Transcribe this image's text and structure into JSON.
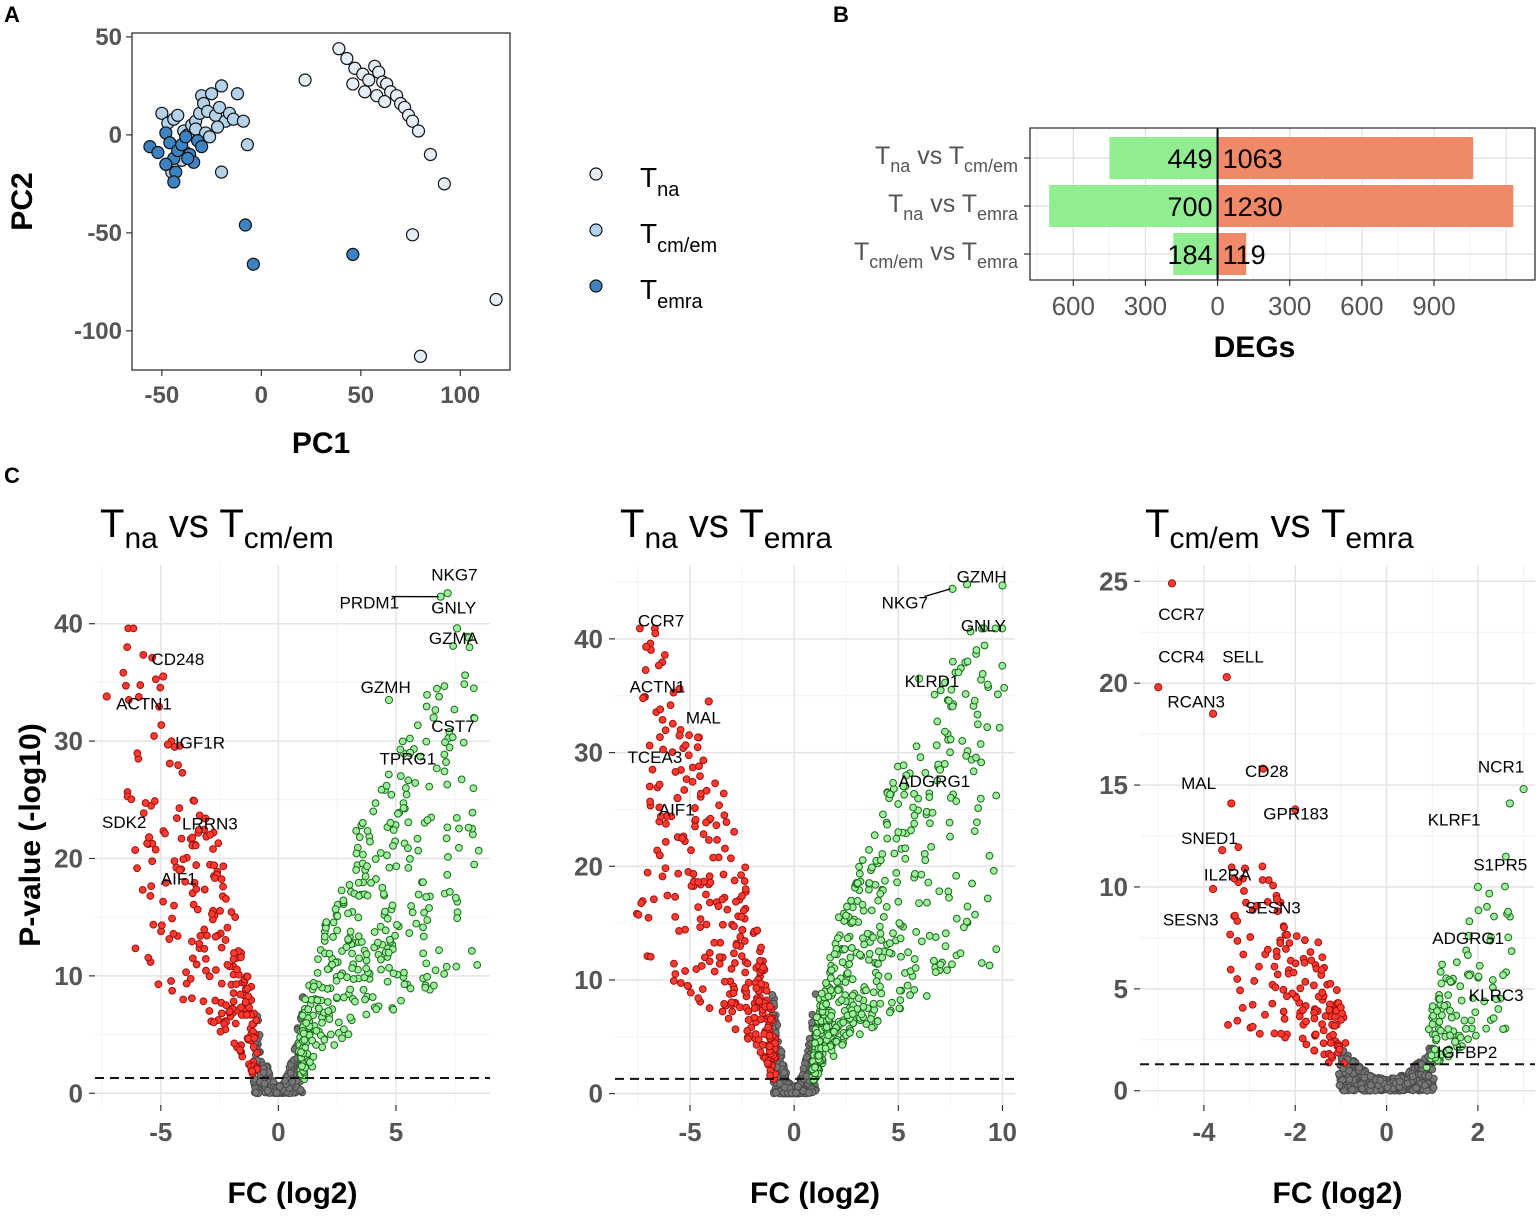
{
  "panels": {
    "a_label": "A",
    "b_label": "B",
    "c_label": "C"
  },
  "chart_data": [
    {
      "id": "pca",
      "type": "scatter",
      "xlabel": "PC1",
      "ylabel": "PC2",
      "xlim": [
        -65,
        125
      ],
      "ylim": [
        -120,
        52
      ],
      "xticks": [
        -50,
        0,
        50,
        100
      ],
      "yticks": [
        50,
        0,
        -50,
        -100
      ],
      "legend": {
        "placement": "right",
        "entries": [
          {
            "base": "T",
            "sub": "na",
            "color": "#e4eef8"
          },
          {
            "base": "T",
            "sub": "cm/em",
            "color": "#b4d3ea"
          },
          {
            "base": "T",
            "sub": "emra",
            "color": "#3d83c1"
          }
        ]
      },
      "series": [
        {
          "name": "Tna",
          "color": "#e4eef8",
          "points": [
            [
              39,
              44
            ],
            [
              43,
              39
            ],
            [
              47,
              34
            ],
            [
              51,
              31
            ],
            [
              54,
              28
            ],
            [
              57,
              35
            ],
            [
              59,
              32
            ],
            [
              61,
              27
            ],
            [
              63,
              26
            ],
            [
              65,
              22
            ],
            [
              68,
              20
            ],
            [
              70,
              16
            ],
            [
              72,
              14
            ],
            [
              74,
              10
            ],
            [
              76,
              7
            ],
            [
              79,
              2
            ],
            [
              58,
              20
            ],
            [
              62,
              17
            ],
            [
              52,
              22
            ],
            [
              46,
              26
            ],
            [
              22,
              28
            ],
            [
              85,
              -10
            ],
            [
              92,
              -25
            ],
            [
              76,
              -51
            ],
            [
              118,
              -84
            ],
            [
              80,
              -113
            ]
          ]
        },
        {
          "name": "Tcm/em",
          "color": "#b4d3ea",
          "points": [
            [
              -50,
              11
            ],
            [
              -47,
              6
            ],
            [
              -44,
              8
            ],
            [
              -42,
              10
            ],
            [
              -39,
              2
            ],
            [
              -37,
              0
            ],
            [
              -35,
              5
            ],
            [
              -33,
              7
            ],
            [
              -31,
              11
            ],
            [
              -30,
              20
            ],
            [
              -29,
              16
            ],
            [
              -27,
              12
            ],
            [
              -25,
              21
            ],
            [
              -23,
              10
            ],
            [
              -21,
              14
            ],
            [
              -20,
              25
            ],
            [
              -18,
              7
            ],
            [
              -16,
              11
            ],
            [
              -14,
              8
            ],
            [
              -12,
              21
            ],
            [
              -9,
              7
            ],
            [
              -7,
              -5
            ],
            [
              -20,
              -19
            ],
            [
              -38,
              -9
            ],
            [
              -33,
              3
            ],
            [
              -28,
              1
            ],
            [
              -26,
              -1
            ],
            [
              -22,
              4
            ],
            [
              -40,
              -13
            ],
            [
              -45,
              -19
            ]
          ]
        },
        {
          "name": "Temra",
          "color": "#3d83c1",
          "points": [
            [
              -56,
              -6
            ],
            [
              -52,
              -9
            ],
            [
              -48,
              1
            ],
            [
              -46,
              -4
            ],
            [
              -44,
              -12
            ],
            [
              -43,
              -19
            ],
            [
              -42,
              -8
            ],
            [
              -40,
              -5
            ],
            [
              -38,
              -1
            ],
            [
              -36,
              -10
            ],
            [
              -34,
              -14
            ],
            [
              -32,
              -3
            ],
            [
              -30,
              -6
            ],
            [
              -44,
              -24
            ],
            [
              -48,
              -15
            ],
            [
              -37,
              -12
            ],
            [
              -8,
              -46
            ],
            [
              -4,
              -66
            ],
            [
              46,
              -61
            ]
          ]
        }
      ]
    },
    {
      "id": "degs",
      "type": "bar",
      "orientation": "horizontal",
      "xlabel": "DEGs",
      "xlim": [
        -780,
        1320
      ],
      "xticks": [
        -600,
        -300,
        0,
        300,
        600,
        900
      ],
      "xtick_labels": [
        "600",
        "300",
        "0",
        "300",
        "600",
        "900"
      ],
      "categories": [
        {
          "base1": "T",
          "sub1": "na",
          "mid": " vs ",
          "base2": "T",
          "sub2": "cm/em"
        },
        {
          "base1": "T",
          "sub1": "na",
          "mid": " vs ",
          "base2": "T",
          "sub2": "emra"
        },
        {
          "base1": "T",
          "sub1": "cm/em",
          "mid": " vs ",
          "base2": "T",
          "sub2": "emra"
        }
      ],
      "series": [
        {
          "name": "down",
          "color": "#90ee90",
          "values": [
            449,
            700,
            184
          ]
        },
        {
          "name": "up",
          "color": "#f08968",
          "values": [
            1063,
            1230,
            119
          ]
        }
      ]
    },
    {
      "id": "volcano1",
      "type": "scatter",
      "title": {
        "b1": "T",
        "s1": "na",
        "mid": " vs ",
        "b2": "T",
        "s2": "cm/em"
      },
      "xlabel": "FC (log2)",
      "ylabel": "P-value (-log10)",
      "xlim": [
        -7.8,
        9.0
      ],
      "ylim": [
        -1.0,
        45
      ],
      "xticks": [
        -5,
        0,
        5
      ],
      "yticks": [
        0,
        10,
        20,
        30,
        40
      ],
      "threshold": 1.3,
      "fc_cut": 1.0,
      "seed": 11,
      "spread": {
        "left": 5.5,
        "right": 7.5,
        "amp": 38,
        "n_ns": 260,
        "n_down": 230,
        "n_up": 380
      },
      "labeled_points": [
        {
          "label": "NKG7",
          "x": 7.2,
          "y": 42.6,
          "lx": 6.5,
          "ly": 44.2
        },
        {
          "label": "PRDM1",
          "x": 6.9,
          "y": 42.3,
          "lx": 2.6,
          "ly": 41.8,
          "segment": true
        },
        {
          "label": "GNLY",
          "x": 7.6,
          "y": 39.6,
          "lx": 6.5,
          "ly": 41.4
        },
        {
          "label": "GZMA",
          "x": 8.1,
          "y": 38.8,
          "lx": 6.4,
          "ly": 38.8
        },
        {
          "label": "GZMH",
          "x": 4.7,
          "y": 33.5,
          "lx": 3.5,
          "ly": 34.6
        },
        {
          "label": "CST7",
          "x": 6.6,
          "y": 32.0,
          "lx": 6.5,
          "ly": 31.3
        },
        {
          "label": "TPRG1",
          "x": 5.6,
          "y": 29.0,
          "lx": 4.3,
          "ly": 28.5
        },
        {
          "label": "CD248",
          "x": -4.9,
          "y": 35.5,
          "lx": -5.4,
          "ly": 37.0
        },
        {
          "label": "ACTN1",
          "x": -7.3,
          "y": 33.8,
          "lx": -6.9,
          "ly": 33.2
        },
        {
          "label": "IGF1R",
          "x": -4.7,
          "y": 29.7,
          "lx": -4.4,
          "ly": 29.9
        },
        {
          "label": "SDK2",
          "x": -5.5,
          "y": 21.8,
          "lx": -7.5,
          "ly": 23.1
        },
        {
          "label": "LRRN3",
          "x": -3.1,
          "y": 23.4,
          "lx": -4.1,
          "ly": 23.0
        },
        {
          "label": "AIF1",
          "x": -4.2,
          "y": 19.0,
          "lx": -5.0,
          "ly": 18.3
        }
      ]
    },
    {
      "id": "volcano2",
      "type": "scatter",
      "title": {
        "b1": "T",
        "s1": "na",
        "mid": " vs ",
        "b2": "T",
        "s2": "emra"
      },
      "xlabel": "FC (log2)",
      "ylabel": "",
      "xlim": [
        -8.6,
        10.6
      ],
      "ylim": [
        -1.0,
        46.5
      ],
      "xticks": [
        -5,
        0,
        5,
        10
      ],
      "yticks": [
        0,
        10,
        20,
        30,
        40
      ],
      "threshold": 1.3,
      "fc_cut": 1.0,
      "seed": 23,
      "spread": {
        "left": 6.5,
        "right": 9.0,
        "amp": 42,
        "n_ns": 300,
        "n_down": 320,
        "n_up": 480
      },
      "labeled_points": [
        {
          "label": "GZMH",
          "x": 8.3,
          "y": 44.8,
          "lx": 7.8,
          "ly": 45.5
        },
        {
          "label": "NKG7",
          "x": 7.6,
          "y": 44.4,
          "lx": 4.2,
          "ly": 43.2,
          "segment": true
        },
        {
          "label": "GNLY",
          "x": 10.0,
          "y": 44.7,
          "lx": 8.0,
          "ly": 41.2
        },
        {
          "label": "KLRD1",
          "x": 6.0,
          "y": 36.5,
          "lx": 5.3,
          "ly": 36.3
        },
        {
          "label": "ADGRG1",
          "x": 7.0,
          "y": 28.5,
          "lx": 5.0,
          "ly": 27.5
        },
        {
          "label": "CCR7",
          "x": -7.1,
          "y": 39.3,
          "lx": -7.5,
          "ly": 41.6
        },
        {
          "label": "ACTN1",
          "x": -5.5,
          "y": 35.6,
          "lx": -7.9,
          "ly": 35.8
        },
        {
          "label": "MAL",
          "x": -4.1,
          "y": 34.5,
          "lx": -5.2,
          "ly": 33.1
        },
        {
          "label": "TCEA3",
          "x": -5.5,
          "y": 31.5,
          "lx": -8.0,
          "ly": 29.6
        },
        {
          "label": "AIF1",
          "x": -5.6,
          "y": 26.0,
          "lx": -6.5,
          "ly": 25.0
        }
      ]
    },
    {
      "id": "volcano3",
      "type": "scatter",
      "title": {
        "b1": "T",
        "s1": "cm/em",
        "mid": " vs ",
        "b2": "T",
        "s2": "emra"
      },
      "xlabel": "FC (log2)",
      "ylabel": "",
      "xlim": [
        -5.4,
        3.25
      ],
      "ylim": [
        -0.7,
        25.8
      ],
      "xticks": [
        -4,
        -2,
        0,
        2
      ],
      "yticks": [
        0,
        5,
        10,
        15,
        20,
        25
      ],
      "threshold": 1.3,
      "fc_cut": 1.0,
      "seed": 37,
      "spread": {
        "left": 2.4,
        "right": 1.8,
        "amp": 8.5,
        "n_ns": 420,
        "n_down": 150,
        "n_up": 110
      },
      "labeled_points": [
        {
          "label": "CCR7",
          "x": -4.7,
          "y": 24.9,
          "lx": -5.0,
          "ly": 23.4
        },
        {
          "label": "CCR4",
          "x": -5.0,
          "y": 19.8,
          "lx": -5.0,
          "ly": 21.3
        },
        {
          "label": "SELL",
          "x": -3.5,
          "y": 20.3,
          "lx": -3.6,
          "ly": 21.3
        },
        {
          "label": "RCAN3",
          "x": -3.8,
          "y": 18.5,
          "lx": -4.8,
          "ly": 19.1
        },
        {
          "label": "CD28",
          "x": -2.7,
          "y": 15.8,
          "lx": -3.1,
          "ly": 15.7
        },
        {
          "label": "MAL",
          "x": -3.4,
          "y": 14.1,
          "lx": -4.5,
          "ly": 15.1
        },
        {
          "label": "GPR183",
          "x": -2.0,
          "y": 13.8,
          "lx": -2.7,
          "ly": 13.6
        },
        {
          "label": "SNED1",
          "x": -3.6,
          "y": 11.8,
          "lx": -4.5,
          "ly": 12.4
        },
        {
          "label": "IL2RA",
          "x": -3.1,
          "y": 10.9,
          "lx": -4.0,
          "ly": 10.6
        },
        {
          "label": "SESN3",
          "x": -3.8,
          "y": 9.9,
          "lx": -4.9,
          "ly": 8.4
        },
        {
          "label": "SESN3",
          "x": -2.4,
          "y": 9.4,
          "lx": -3.1,
          "ly": 9.0
        },
        {
          "label": "NCR1",
          "x": 3.0,
          "y": 14.8,
          "lx": 2.0,
          "ly": 15.9
        },
        {
          "label": "KLRF1",
          "x": 2.7,
          "y": 14.1,
          "lx": 0.9,
          "ly": 13.3
        },
        {
          "label": "S1PR5",
          "x": 2.0,
          "y": 10.0,
          "lx": 1.9,
          "ly": 11.1
        },
        {
          "label": "ADGRG1",
          "x": 1.8,
          "y": 7.6,
          "lx": 1.0,
          "ly": 7.5
        },
        {
          "label": "KLRC3",
          "x": 2.4,
          "y": 4.5,
          "lx": 1.8,
          "ly": 4.7
        },
        {
          "label": "IGFBP2",
          "x": 1.5,
          "y": 2.4,
          "lx": 1.1,
          "ly": 1.9
        }
      ]
    }
  ]
}
